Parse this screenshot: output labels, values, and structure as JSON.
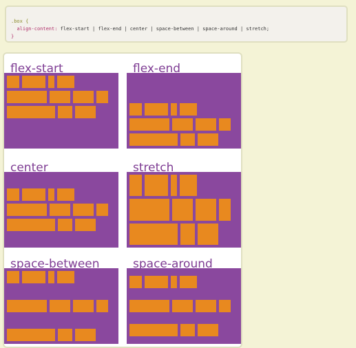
{
  "code": {
    "selector": ".box {",
    "property": "align-content:",
    "value": " flex-start | flex-end | center | space-between | space-around | stretch;",
    "close": "}"
  },
  "demos": [
    {
      "title": "flex-start",
      "align": "flex-start"
    },
    {
      "title": "flex-end",
      "align": "flex-end"
    },
    {
      "title": "center",
      "align": "center"
    },
    {
      "title": "stretch",
      "align": "stretch"
    },
    {
      "title": "space-between",
      "align": "space-between"
    },
    {
      "title": "space-around",
      "align": "space-around"
    }
  ],
  "colors": {
    "container": "#8a489e",
    "item": "#e8891f",
    "title": "#7e3c93"
  }
}
